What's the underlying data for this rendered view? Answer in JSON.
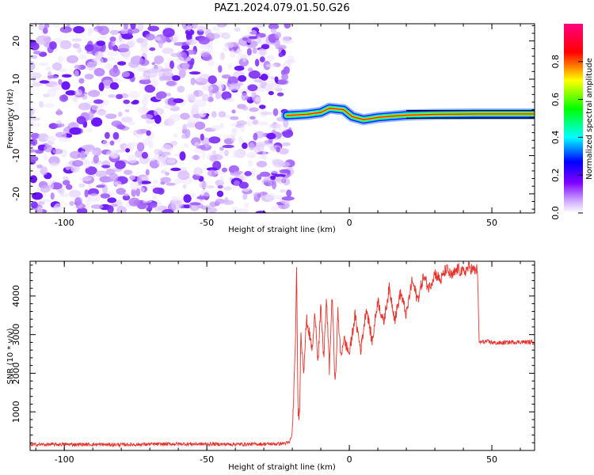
{
  "title": "PAZ1.2024.079.01.50.G26",
  "chart_data": [
    {
      "type": "heatmap",
      "xlabel": "Height of straight line (km)",
      "ylabel": "Frequency (Hz)",
      "xlim": [
        -112,
        65
      ],
      "ylim": [
        -25,
        24.5
      ],
      "xticks": [
        -100,
        -50,
        0,
        50
      ],
      "yticks": [
        -20,
        -10,
        0,
        10,
        20
      ],
      "noise_region_x": [
        -112,
        -22
      ],
      "track_region_x": [
        -22,
        65
      ],
      "track_points": [
        {
          "x": -22,
          "y": 0.5
        },
        {
          "x": -15,
          "y": 0.8
        },
        {
          "x": -10,
          "y": 1.3
        },
        {
          "x": -7,
          "y": 2.4
        },
        {
          "x": -2,
          "y": 2.0
        },
        {
          "x": 1,
          "y": 0.2
        },
        {
          "x": 5,
          "y": -0.6
        },
        {
          "x": 10,
          "y": 0.0
        },
        {
          "x": 15,
          "y": 0.3
        },
        {
          "x": 20,
          "y": 0.6
        },
        {
          "x": 30,
          "y": 0.8
        },
        {
          "x": 45,
          "y": 0.9
        },
        {
          "x": 65,
          "y": 0.9
        }
      ],
      "colorbar": {
        "label": "Normalized spectral amplitude",
        "range": [
          0,
          1
        ],
        "ticks": [
          "0.0",
          "0.2",
          "0.4",
          "0.6",
          "0.8"
        ],
        "colors": [
          "#ffffff",
          "#a000ff",
          "#0000ff",
          "#00ffff",
          "#00ff00",
          "#ffff00",
          "#ff0000",
          "#ff0080"
        ]
      },
      "grid": false
    },
    {
      "type": "line",
      "xlabel": "Height of straight line (km)",
      "ylabel": "SNR (10 * v/v)",
      "xlim": [
        -112,
        65
      ],
      "ylim": [
        0,
        4900
      ],
      "xticks": [
        -100,
        -50,
        0,
        50
      ],
      "yticks": [
        1000,
        2000,
        3000,
        4000
      ],
      "color": "#e8322c",
      "series": [
        {
          "x": [
            -112,
            -100,
            -80,
            -60,
            -40,
            -25,
            -21,
            -20,
            -19,
            -18.5,
            -18,
            -17.5,
            -17,
            -16,
            -15,
            -13,
            -12,
            -11,
            -10,
            -9,
            -8,
            -7,
            -6,
            -5,
            -4,
            -3,
            -2,
            0,
            2,
            4,
            6,
            8,
            10,
            12,
            14,
            16,
            18,
            20,
            22,
            24,
            26,
            28,
            30,
            32,
            34,
            36,
            38,
            40,
            42,
            44,
            45,
            45.5,
            48,
            52,
            56,
            60,
            65
          ],
          "y": [
            150,
            160,
            150,
            170,
            160,
            170,
            200,
            450,
            2500,
            4700,
            1000,
            900,
            3000,
            2100,
            3400,
            2600,
            3600,
            2300,
            3700,
            2400,
            3900,
            2100,
            4100,
            1600,
            3600,
            2400,
            2900,
            2500,
            3500,
            2600,
            3700,
            2800,
            3900,
            3300,
            4200,
            3400,
            4100,
            3500,
            4400,
            3900,
            4500,
            4200,
            4600,
            4400,
            4700,
            4500,
            4700,
            4600,
            4750,
            4650,
            4700,
            2800,
            2820,
            2780,
            2800,
            2810,
            2800
          ]
        }
      ],
      "grid": false
    }
  ]
}
